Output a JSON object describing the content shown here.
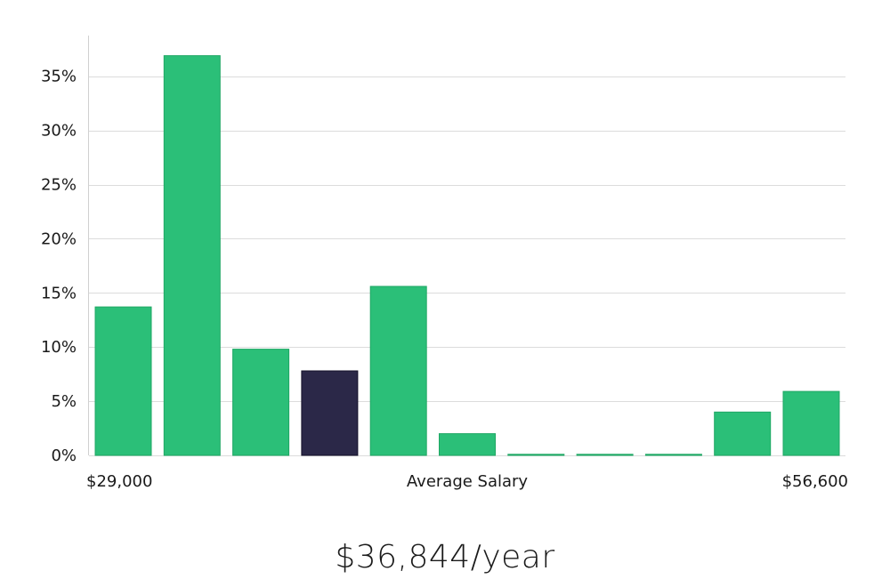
{
  "chart_data": {
    "type": "bar",
    "title": "",
    "xlabel": "Average Salary",
    "ylabel": "",
    "x_min_label": "$29,000",
    "x_max_label": "$56,600",
    "ylim": [
      0,
      38
    ],
    "yticks": [
      0,
      5,
      10,
      15,
      20,
      25,
      30,
      35
    ],
    "ytick_labels": [
      "0%",
      "5%",
      "10%",
      "15%",
      "20%",
      "25%",
      "30%",
      "35%"
    ],
    "values": [
      13.7,
      36.9,
      9.8,
      7.8,
      15.6,
      2.0,
      0.1,
      0.1,
      0.1,
      4.0,
      5.9
    ],
    "highlight_index": 3,
    "colors": {
      "bar": "#2bbf78",
      "bar_stroke": "#1fa764",
      "highlight": "#2b2848",
      "highlight_stroke": "#14122a"
    },
    "grid": true
  },
  "salary": {
    "value": "$36,844/year"
  }
}
